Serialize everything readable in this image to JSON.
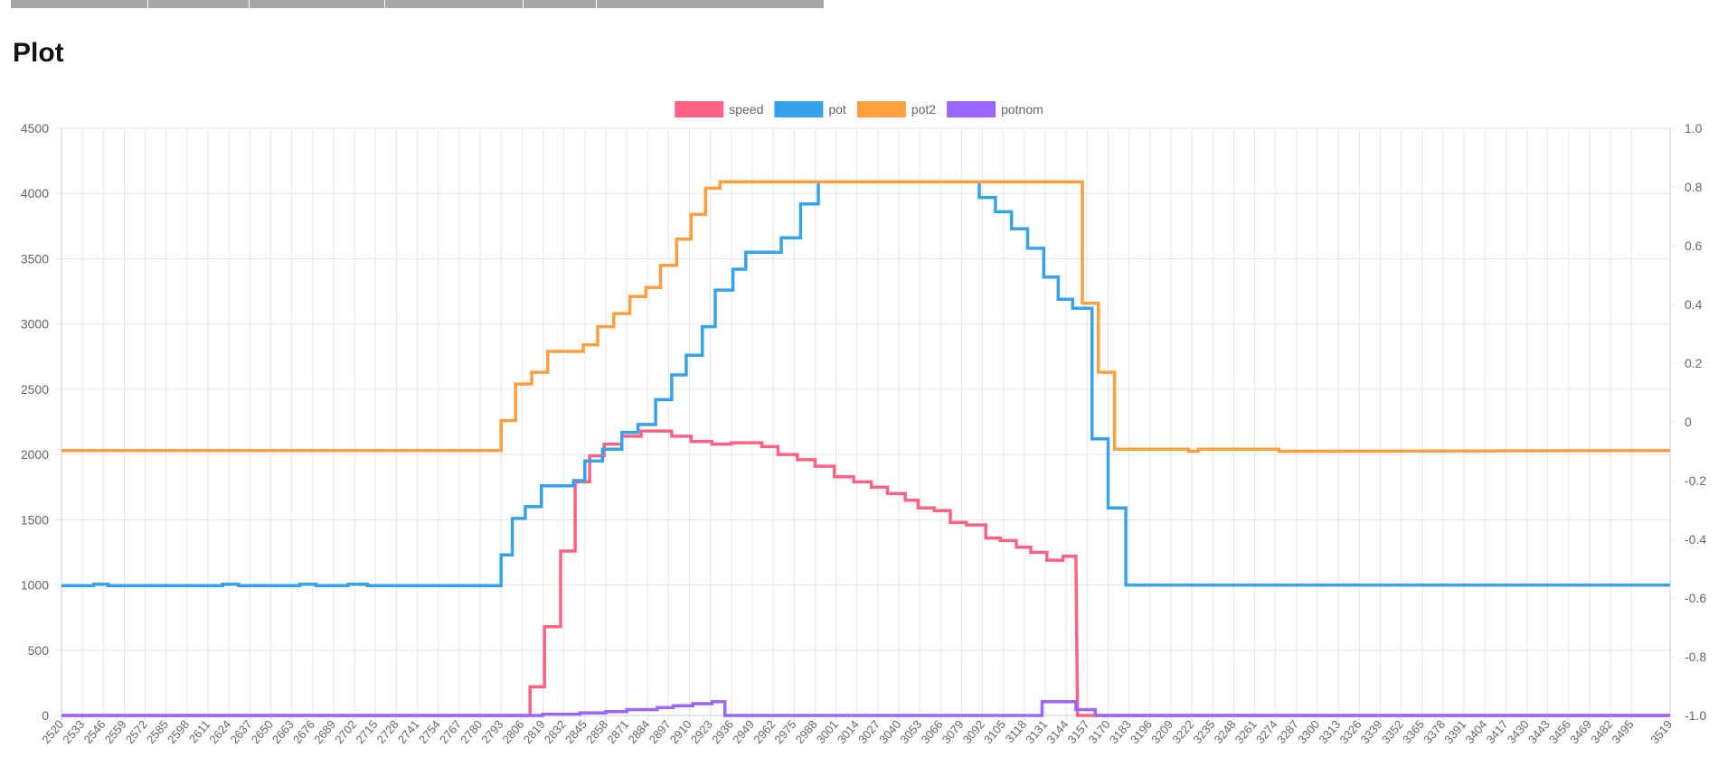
{
  "page": {
    "title": "Plot"
  },
  "chart_data": {
    "type": "line",
    "x_categories": [
      "2520",
      "2533",
      "2546",
      "2559",
      "2572",
      "2585",
      "2598",
      "2611",
      "2624",
      "2637",
      "2650",
      "2663",
      "2676",
      "2689",
      "2702",
      "2715",
      "2728",
      "2741",
      "2754",
      "2767",
      "2780",
      "2793",
      "2806",
      "2819",
      "2832",
      "2845",
      "2858",
      "2871",
      "2884",
      "2897",
      "2910",
      "2923",
      "2936",
      "2949",
      "2962",
      "2975",
      "2988",
      "3001",
      "3014",
      "3027",
      "3040",
      "3053",
      "3066",
      "3079",
      "3092",
      "3105",
      "3118",
      "3131",
      "3144",
      "3157",
      "3170",
      "3183",
      "3196",
      "3209",
      "3222",
      "3235",
      "3248",
      "3261",
      "3274",
      "3287",
      "3300",
      "3313",
      "3326",
      "3339",
      "3352",
      "3365",
      "3378",
      "3391",
      "3404",
      "3417",
      "3430",
      "3443",
      "3456",
      "3469",
      "3482",
      "3495",
      "3519"
    ],
    "y_left": {
      "min": 0,
      "max": 4500,
      "step": 500
    },
    "y_right": {
      "min": -1.0,
      "max": 1.0,
      "step": 0.2,
      "ticks": [
        "1.0",
        "0.8",
        "0.6",
        "0.4",
        "0.2",
        "0",
        "-0.2",
        "-0.4",
        "-0.6",
        "-0.8",
        "-1.0"
      ]
    },
    "grid": true,
    "legend_position": "top-center",
    "series": [
      {
        "name": "speed",
        "color": "#ff6384",
        "points": [
          [
            2520,
            0
          ],
          [
            2811,
            0
          ],
          [
            2811,
            220
          ],
          [
            2820,
            220
          ],
          [
            2820,
            680
          ],
          [
            2830,
            680
          ],
          [
            2830,
            1260
          ],
          [
            2839,
            1260
          ],
          [
            2839,
            1790
          ],
          [
            2848,
            1790
          ],
          [
            2848,
            1990
          ],
          [
            2857,
            1990
          ],
          [
            2857,
            2080
          ],
          [
            2868,
            2080
          ],
          [
            2868,
            2140
          ],
          [
            2880,
            2140
          ],
          [
            2880,
            2180
          ],
          [
            2899,
            2180
          ],
          [
            2899,
            2140
          ],
          [
            2911,
            2140
          ],
          [
            2911,
            2100
          ],
          [
            2924,
            2100
          ],
          [
            2924,
            2080
          ],
          [
            2936,
            2080
          ],
          [
            2936,
            2090
          ],
          [
            2955,
            2090
          ],
          [
            2955,
            2060
          ],
          [
            2965,
            2060
          ],
          [
            2965,
            2000
          ],
          [
            2977,
            2000
          ],
          [
            2977,
            1960
          ],
          [
            2988,
            1960
          ],
          [
            2988,
            1910
          ],
          [
            3000,
            1910
          ],
          [
            3000,
            1830
          ],
          [
            3012,
            1830
          ],
          [
            3012,
            1790
          ],
          [
            3023,
            1790
          ],
          [
            3023,
            1750
          ],
          [
            3033,
            1750
          ],
          [
            3033,
            1700
          ],
          [
            3044,
            1700
          ],
          [
            3044,
            1650
          ],
          [
            3052,
            1650
          ],
          [
            3052,
            1590
          ],
          [
            3062,
            1590
          ],
          [
            3062,
            1570
          ],
          [
            3072,
            1570
          ],
          [
            3072,
            1480
          ],
          [
            3082,
            1480
          ],
          [
            3082,
            1460
          ],
          [
            3094,
            1460
          ],
          [
            3094,
            1360
          ],
          [
            3103,
            1360
          ],
          [
            3103,
            1340
          ],
          [
            3113,
            1340
          ],
          [
            3113,
            1290
          ],
          [
            3122,
            1290
          ],
          [
            3122,
            1250
          ],
          [
            3132,
            1250
          ],
          [
            3132,
            1190
          ],
          [
            3142,
            1190
          ],
          [
            3142,
            1220
          ],
          [
            3150,
            1220
          ],
          [
            3151,
            0
          ],
          [
            3519,
            0
          ]
        ]
      },
      {
        "name": "pot",
        "color": "#36a2eb",
        "points": [
          [
            2520,
            995
          ],
          [
            2540,
            995
          ],
          [
            2540,
            1005
          ],
          [
            2549,
            1005
          ],
          [
            2549,
            995
          ],
          [
            2620,
            995
          ],
          [
            2620,
            1005
          ],
          [
            2630,
            1005
          ],
          [
            2630,
            995
          ],
          [
            2668,
            995
          ],
          [
            2668,
            1005
          ],
          [
            2678,
            1005
          ],
          [
            2678,
            995
          ],
          [
            2698,
            995
          ],
          [
            2698,
            1005
          ],
          [
            2710,
            1005
          ],
          [
            2710,
            995
          ],
          [
            2793,
            995
          ],
          [
            2793,
            1230
          ],
          [
            2800,
            1230
          ],
          [
            2800,
            1510
          ],
          [
            2808,
            1510
          ],
          [
            2808,
            1600
          ],
          [
            2818,
            1600
          ],
          [
            2818,
            1760
          ],
          [
            2838,
            1760
          ],
          [
            2838,
            1800
          ],
          [
            2845,
            1800
          ],
          [
            2845,
            1950
          ],
          [
            2856,
            1950
          ],
          [
            2856,
            2040
          ],
          [
            2868,
            2040
          ],
          [
            2868,
            2170
          ],
          [
            2878,
            2170
          ],
          [
            2878,
            2230
          ],
          [
            2889,
            2230
          ],
          [
            2889,
            2420
          ],
          [
            2899,
            2420
          ],
          [
            2899,
            2610
          ],
          [
            2908,
            2610
          ],
          [
            2908,
            2760
          ],
          [
            2918,
            2760
          ],
          [
            2918,
            2980
          ],
          [
            2926,
            2980
          ],
          [
            2926,
            3260
          ],
          [
            2937,
            3260
          ],
          [
            2937,
            3420
          ],
          [
            2945,
            3420
          ],
          [
            2945,
            3550
          ],
          [
            2967,
            3550
          ],
          [
            2967,
            3660
          ],
          [
            2979,
            3660
          ],
          [
            2979,
            3920
          ],
          [
            2990,
            3920
          ],
          [
            2990,
            4090
          ],
          [
            3090,
            4090
          ],
          [
            3090,
            3970
          ],
          [
            3100,
            3970
          ],
          [
            3100,
            3860
          ],
          [
            3110,
            3860
          ],
          [
            3110,
            3730
          ],
          [
            3120,
            3730
          ],
          [
            3120,
            3580
          ],
          [
            3130,
            3580
          ],
          [
            3130,
            3360
          ],
          [
            3139,
            3360
          ],
          [
            3139,
            3190
          ],
          [
            3148,
            3190
          ],
          [
            3148,
            3120
          ],
          [
            3160,
            3120
          ],
          [
            3160,
            2120
          ],
          [
            3170,
            2120
          ],
          [
            3170,
            1590
          ],
          [
            3181,
            1590
          ],
          [
            3181,
            1000
          ],
          [
            3519,
            1000
          ]
        ]
      },
      {
        "name": "pot2",
        "color": "#ff9f40",
        "points": [
          [
            2520,
            2030
          ],
          [
            2793,
            2030
          ],
          [
            2793,
            2260
          ],
          [
            2802,
            2260
          ],
          [
            2802,
            2540
          ],
          [
            2812,
            2540
          ],
          [
            2812,
            2630
          ],
          [
            2822,
            2630
          ],
          [
            2822,
            2790
          ],
          [
            2844,
            2790
          ],
          [
            2844,
            2840
          ],
          [
            2853,
            2840
          ],
          [
            2853,
            2980
          ],
          [
            2863,
            2980
          ],
          [
            2863,
            3080
          ],
          [
            2873,
            3080
          ],
          [
            2873,
            3210
          ],
          [
            2883,
            3210
          ],
          [
            2883,
            3280
          ],
          [
            2892,
            3280
          ],
          [
            2892,
            3450
          ],
          [
            2902,
            3450
          ],
          [
            2902,
            3650
          ],
          [
            2911,
            3650
          ],
          [
            2911,
            3840
          ],
          [
            2920,
            3840
          ],
          [
            2920,
            4040
          ],
          [
            2929,
            4040
          ],
          [
            2929,
            4090
          ],
          [
            3154,
            4090
          ],
          [
            3154,
            3160
          ],
          [
            3164,
            3160
          ],
          [
            3164,
            2630
          ],
          [
            3174,
            2630
          ],
          [
            3174,
            2040
          ],
          [
            3220,
            2040
          ],
          [
            3220,
            2025
          ],
          [
            3226,
            2025
          ],
          [
            3226,
            2040
          ],
          [
            3276,
            2040
          ],
          [
            3276,
            2025
          ],
          [
            3519,
            2030
          ]
        ]
      },
      {
        "name": "potnom",
        "color": "#9966ff",
        "points": [
          [
            2520,
            0
          ],
          [
            2819,
            0
          ],
          [
            2819,
            10
          ],
          [
            2842,
            10
          ],
          [
            2842,
            20
          ],
          [
            2858,
            20
          ],
          [
            2858,
            30
          ],
          [
            2871,
            30
          ],
          [
            2871,
            45
          ],
          [
            2890,
            45
          ],
          [
            2890,
            60
          ],
          [
            2900,
            60
          ],
          [
            2900,
            75
          ],
          [
            2912,
            75
          ],
          [
            2912,
            90
          ],
          [
            2924,
            90
          ],
          [
            2924,
            105
          ],
          [
            2932,
            105
          ],
          [
            2932,
            0
          ],
          [
            3129,
            0
          ],
          [
            3129,
            105
          ],
          [
            3150,
            105
          ],
          [
            3150,
            45
          ],
          [
            3162,
            45
          ],
          [
            3162,
            0
          ],
          [
            3519,
            0
          ]
        ]
      }
    ]
  }
}
